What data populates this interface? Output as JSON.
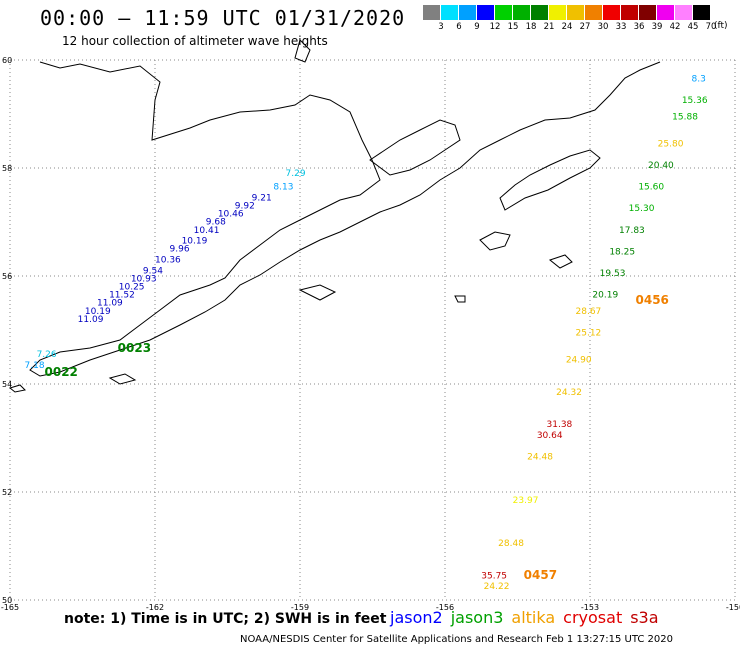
{
  "header": {
    "title": "00:00 – 11:59 UTC 01/31/2020",
    "subtitle": "12 hour collection of altimeter wave heights"
  },
  "legend": {
    "unit": "(ft)",
    "colors": [
      "#808080",
      "#00e0ff",
      "#00a0ff",
      "#0000ff",
      "#00d000",
      "#00b000",
      "#008000",
      "#f0f000",
      "#f0c000",
      "#f08000",
      "#f00000",
      "#c00000",
      "#800000",
      "#f000f0",
      "#ff80ff",
      "#000000"
    ],
    "labels": [
      "3",
      "6",
      "9",
      "12",
      "15",
      "18",
      "21",
      "24",
      "27",
      "30",
      "33",
      "36",
      "39",
      "42",
      "45",
      "70"
    ]
  },
  "axes": {
    "x_ticks": [
      "-165",
      "-162",
      "-159",
      "-156",
      "-153",
      "-150"
    ],
    "y_ticks": [
      "60",
      "58",
      "56",
      "54",
      "52",
      "50"
    ],
    "lon_range": [
      -165,
      -150
    ],
    "lat_range": [
      50,
      60
    ]
  },
  "tracks": [
    {
      "satellite": "jason2",
      "label": "0022",
      "label_color": "#008000",
      "points": [
        {
          "lon": -164.7,
          "lat": 54.3,
          "v": "7.18",
          "color": "#00a0ff"
        },
        {
          "lon": -164.45,
          "lat": 54.5,
          "v": "7.26",
          "color": "#00c0e0"
        }
      ]
    },
    {
      "satellite": "jason2",
      "label": "0023",
      "label_color": "#008000",
      "points": [
        {
          "lon": -163.6,
          "lat": 55.15,
          "v": "11.09",
          "color": "#0000c0"
        },
        {
          "lon": -163.45,
          "lat": 55.3,
          "v": "10.19",
          "color": "#0000c0"
        },
        {
          "lon": -163.2,
          "lat": 55.45,
          "v": "11.09",
          "color": "#0000c0"
        },
        {
          "lon": -162.95,
          "lat": 55.6,
          "v": "11.52",
          "color": "#0000c0"
        },
        {
          "lon": -162.75,
          "lat": 55.75,
          "v": "10.25",
          "color": "#0000c0"
        },
        {
          "lon": -162.5,
          "lat": 55.9,
          "v": "10.93",
          "color": "#0000c0"
        },
        {
          "lon": -162.25,
          "lat": 56.05,
          "v": "9.54",
          "color": "#0000c0"
        },
        {
          "lon": -162.0,
          "lat": 56.25,
          "v": "10.36",
          "color": "#0000c0"
        },
        {
          "lon": -161.7,
          "lat": 56.45,
          "v": "9.96",
          "color": "#0000c0"
        },
        {
          "lon": -161.45,
          "lat": 56.6,
          "v": "10.19",
          "color": "#0000c0"
        },
        {
          "lon": -161.2,
          "lat": 56.8,
          "v": "10.41",
          "color": "#0000c0"
        },
        {
          "lon": -160.95,
          "lat": 56.95,
          "v": "9.68",
          "color": "#0000c0"
        },
        {
          "lon": -160.7,
          "lat": 57.1,
          "v": "10.46",
          "color": "#0000c0"
        },
        {
          "lon": -160.35,
          "lat": 57.25,
          "v": "9.92",
          "color": "#0000c0"
        },
        {
          "lon": -160.0,
          "lat": 57.4,
          "v": "9.21",
          "color": "#0000c0"
        },
        {
          "lon": -159.55,
          "lat": 57.6,
          "v": "8.13",
          "color": "#00a0ff"
        },
        {
          "lon": -159.3,
          "lat": 57.85,
          "v": "7.29",
          "color": "#00c0e0"
        }
      ]
    },
    {
      "satellite": "jason3",
      "label": "0456",
      "label_color": "#f08000",
      "points": [
        {
          "lon": -153.3,
          "lat": 55.3,
          "v": "28.67",
          "color": "#f0c000"
        },
        {
          "lon": -152.95,
          "lat": 55.6,
          "v": "20.19",
          "color": "#008000"
        },
        {
          "lon": -152.8,
          "lat": 56.0,
          "v": "19.53",
          "color": "#008000"
        },
        {
          "lon": -152.6,
          "lat": 56.4,
          "v": "18.25",
          "color": "#008000"
        },
        {
          "lon": -152.4,
          "lat": 56.8,
          "v": "17.83",
          "color": "#008000"
        },
        {
          "lon": -152.2,
          "lat": 57.2,
          "v": "15.30",
          "color": "#00b000"
        },
        {
          "lon": -152.0,
          "lat": 57.6,
          "v": "15.60",
          "color": "#00b000"
        },
        {
          "lon": -151.8,
          "lat": 58.0,
          "v": "20.40",
          "color": "#008000"
        },
        {
          "lon": -151.6,
          "lat": 58.4,
          "v": "25.80",
          "color": "#f0c000"
        },
        {
          "lon": -151.3,
          "lat": 58.9,
          "v": "15.88",
          "color": "#00b000"
        },
        {
          "lon": -151.1,
          "lat": 59.2,
          "v": "15.36",
          "color": "#00b000"
        },
        {
          "lon": -150.9,
          "lat": 59.6,
          "v": "8.3",
          "color": "#00a0ff"
        }
      ]
    },
    {
      "satellite": "altika",
      "label": "0457",
      "label_color": "#f08000",
      "points": [
        {
          "lon": -155.2,
          "lat": 50.2,
          "v": "24.22",
          "color": "#f0c000"
        },
        {
          "lon": -155.25,
          "lat": 50.4,
          "v": "35.75",
          "color": "#c00000"
        },
        {
          "lon": -154.9,
          "lat": 51.0,
          "v": "28.48",
          "color": "#f0c000"
        },
        {
          "lon": -154.6,
          "lat": 51.8,
          "v": "23.97",
          "color": "#f0f000"
        },
        {
          "lon": -154.3,
          "lat": 52.6,
          "v": "24.48",
          "color": "#f0c000"
        },
        {
          "lon": -154.1,
          "lat": 53.0,
          "v": "30.64",
          "color": "#c00000"
        },
        {
          "lon": -153.9,
          "lat": 53.2,
          "v": "31.38",
          "color": "#c00000"
        },
        {
          "lon": -153.7,
          "lat": 53.8,
          "v": "24.32",
          "color": "#f0c000"
        },
        {
          "lon": -153.5,
          "lat": 54.4,
          "v": "24.90",
          "color": "#f0c000"
        },
        {
          "lon": -153.3,
          "lat": 54.9,
          "v": "25.12",
          "color": "#f0c000"
        }
      ]
    }
  ],
  "notes": {
    "text": "note: 1) Time is in UTC; 2) SWH is in feet"
  },
  "satellites": [
    {
      "name": "jason2",
      "color": "#0000ff"
    },
    {
      "name": "jason3",
      "color": "#00a000"
    },
    {
      "name": "altika",
      "color": "#f0a000"
    },
    {
      "name": "cryosat",
      "color": "#e00000"
    },
    {
      "name": "s3a",
      "color": "#c00000"
    }
  ],
  "footer": {
    "text": "NOAA/NESDIS Center for Satellite Applications and Research   Feb  1 13:27:15 UTC 2020"
  }
}
